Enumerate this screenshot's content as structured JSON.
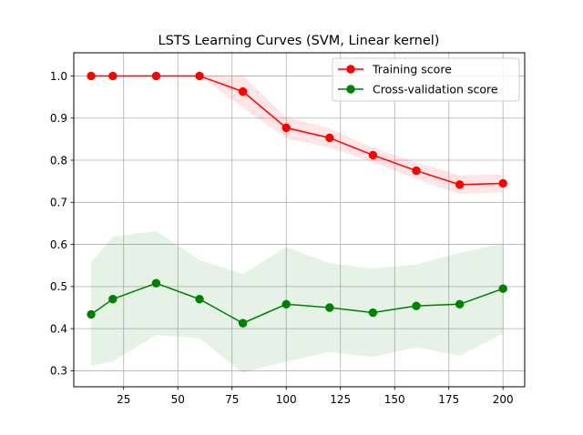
{
  "chart_data": {
    "type": "line",
    "title": "LSTS Learning Curves (SVM, Linear kernel)",
    "xlabel": "",
    "ylabel": "",
    "xlim": [
      2,
      210
    ],
    "ylim": [
      0.262,
      1.055
    ],
    "x_ticks": [
      25,
      50,
      75,
      100,
      125,
      150,
      175,
      200
    ],
    "y_ticks": [
      0.3,
      0.4,
      0.5,
      0.6,
      0.7,
      0.8,
      0.9,
      1.0
    ],
    "grid": true,
    "legend_position": "upper right",
    "series": [
      {
        "name": "Training score",
        "color": "#ff0000",
        "x": [
          10,
          20,
          40,
          60,
          80,
          100,
          120,
          140,
          160,
          180,
          200
        ],
        "values": [
          1.0,
          1.0,
          1.0,
          1.0,
          0.963,
          0.877,
          0.853,
          0.812,
          0.775,
          0.742,
          0.745
        ],
        "lower": [
          1.0,
          1.0,
          1.0,
          1.0,
          0.925,
          0.852,
          0.83,
          0.795,
          0.755,
          0.72,
          0.724
        ],
        "upper": [
          1.0,
          1.0,
          1.0,
          1.0,
          1.0,
          0.902,
          0.876,
          0.829,
          0.795,
          0.764,
          0.766
        ],
        "band_color": "#ff0000"
      },
      {
        "name": "Cross-validation score",
        "color": "#008000",
        "x": [
          10,
          20,
          40,
          60,
          80,
          100,
          120,
          140,
          160,
          180,
          200
        ],
        "values": [
          0.434,
          0.47,
          0.508,
          0.47,
          0.413,
          0.458,
          0.45,
          0.438,
          0.454,
          0.458,
          0.495
        ],
        "lower": [
          0.312,
          0.322,
          0.385,
          0.377,
          0.295,
          0.322,
          0.345,
          0.333,
          0.356,
          0.336,
          0.388
        ],
        "upper": [
          0.556,
          0.618,
          0.632,
          0.563,
          0.53,
          0.594,
          0.555,
          0.543,
          0.552,
          0.58,
          0.602
        ],
        "band_color": "#008000"
      }
    ]
  }
}
